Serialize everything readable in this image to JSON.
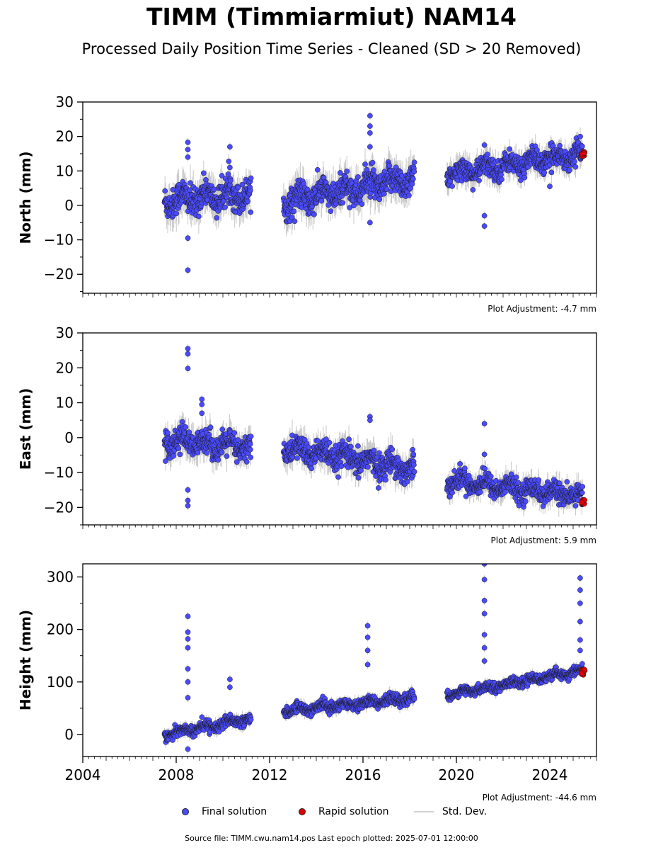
{
  "title": "TIMM (Timmiarmiut) NAM14",
  "subtitle": "Processed Daily Position Time Series - Cleaned (SD > 20 Removed)",
  "legend": {
    "final": "Final solution",
    "rapid": "Rapid solution",
    "std": "Std. Dev."
  },
  "footer": "Source file: TIMM.cwu.nam14.pos  Last epoch plotted: 2025-07-01 12:00:00",
  "colors": {
    "final": "#4a4aff",
    "rapid": "#e00000",
    "std": "#c8c8c8",
    "edge": "#1a1a1a"
  },
  "chart_data": [
    {
      "type": "scatter",
      "ylabel": "North (mm)",
      "xlim": [
        2004,
        2026
      ],
      "ylim": [
        -25.5,
        30
      ],
      "yticks": [
        -20,
        -10,
        0,
        10,
        20,
        30
      ],
      "adjustment": "Plot Adjustment: -4.7 mm",
      "segments": [
        {
          "x": [
            2007.5,
            2011.2
          ],
          "mean": [
            1.5,
            3.5
          ],
          "spread": 3.0
        },
        {
          "x": [
            2012.6,
            2018.2
          ],
          "mean": [
            1.0,
            8.0
          ],
          "spread": 3.0
        },
        {
          "x": [
            2019.6,
            2025.4
          ],
          "mean": [
            9.0,
            15.0
          ],
          "spread": 2.2
        }
      ],
      "outliers": [
        [
          2008.5,
          18.3
        ],
        [
          2008.5,
          16.2
        ],
        [
          2008.5,
          14.0
        ],
        [
          2008.5,
          -18.8
        ],
        [
          2008.5,
          -9.5
        ],
        [
          2010.3,
          17.0
        ],
        [
          2010.3,
          11.0
        ],
        [
          2016.3,
          26.0
        ],
        [
          2016.3,
          23.0
        ],
        [
          2016.3,
          21.0
        ],
        [
          2016.3,
          17.0
        ],
        [
          2016.3,
          -5.0
        ],
        [
          2021.2,
          17.5
        ],
        [
          2021.2,
          -6.0
        ],
        [
          2021.2,
          -3.0
        ],
        [
          2024.0,
          5.5
        ]
      ],
      "rapid": {
        "x": [
          2025.35,
          2025.5
        ],
        "y": [
          14.2,
          15.8
        ]
      }
    },
    {
      "type": "scatter",
      "ylabel": "East (mm)",
      "xlim": [
        2004,
        2026
      ],
      "ylim": [
        -25,
        30
      ],
      "yticks": [
        -20,
        -10,
        0,
        10,
        20,
        30
      ],
      "adjustment": "Plot Adjustment: 5.9 mm",
      "segments": [
        {
          "x": [
            2007.5,
            2011.2
          ],
          "mean": [
            -0.5,
            -3.0
          ],
          "spread": 2.5
        },
        {
          "x": [
            2012.6,
            2018.2
          ],
          "mean": [
            -3.0,
            -9.0
          ],
          "spread": 2.5
        },
        {
          "x": [
            2019.6,
            2025.4
          ],
          "mean": [
            -12.0,
            -17.0
          ],
          "spread": 2.0
        }
      ],
      "outliers": [
        [
          2008.5,
          25.5
        ],
        [
          2008.5,
          24.0
        ],
        [
          2008.5,
          19.8
        ],
        [
          2008.5,
          -15.0
        ],
        [
          2008.5,
          -18.0
        ],
        [
          2008.5,
          -19.5
        ],
        [
          2009.1,
          11.0
        ],
        [
          2009.1,
          9.5
        ],
        [
          2009.1,
          7.0
        ],
        [
          2016.3,
          6.0
        ],
        [
          2016.3,
          5.0
        ],
        [
          2021.2,
          4.0
        ],
        [
          2021.2,
          -4.8
        ]
      ],
      "rapid": {
        "x": [
          2025.35,
          2025.5
        ],
        "y": [
          -19.2,
          -17.8
        ]
      }
    },
    {
      "type": "scatter",
      "ylabel": "Height (mm)",
      "xlim": [
        2004,
        2026
      ],
      "ylim": [
        -42,
        325
      ],
      "yticks": [
        0,
        100,
        200,
        300
      ],
      "xticks": [
        2004,
        2008,
        2012,
        2016,
        2020,
        2024
      ],
      "adjustment": "Plot Adjustment: -44.6 mm",
      "segments": [
        {
          "x": [
            2007.5,
            2011.2
          ],
          "mean": [
            0,
            30
          ],
          "spread": 7
        },
        {
          "x": [
            2012.6,
            2018.2
          ],
          "mean": [
            45,
            70
          ],
          "spread": 7
        },
        {
          "x": [
            2019.6,
            2025.4
          ],
          "mean": [
            75,
            122
          ],
          "spread": 6
        }
      ],
      "outliers": [
        [
          2008.5,
          225
        ],
        [
          2008.5,
          195
        ],
        [
          2008.5,
          182
        ],
        [
          2008.5,
          165
        ],
        [
          2008.5,
          125
        ],
        [
          2008.5,
          100
        ],
        [
          2008.5,
          70
        ],
        [
          2008.5,
          -28
        ],
        [
          2010.3,
          105
        ],
        [
          2010.3,
          90
        ],
        [
          2016.2,
          207
        ],
        [
          2016.2,
          185
        ],
        [
          2016.2,
          160
        ],
        [
          2016.2,
          133
        ],
        [
          2021.2,
          325
        ],
        [
          2021.2,
          295
        ],
        [
          2021.2,
          255
        ],
        [
          2021.2,
          230
        ],
        [
          2021.2,
          190
        ],
        [
          2021.2,
          165
        ],
        [
          2021.2,
          140
        ],
        [
          2025.3,
          298
        ],
        [
          2025.3,
          275
        ],
        [
          2025.3,
          250
        ],
        [
          2025.3,
          215
        ],
        [
          2025.3,
          180
        ],
        [
          2025.3,
          160
        ]
      ],
      "rapid": {
        "x": [
          2025.35,
          2025.5
        ],
        "y": [
          112,
          124
        ]
      }
    }
  ]
}
